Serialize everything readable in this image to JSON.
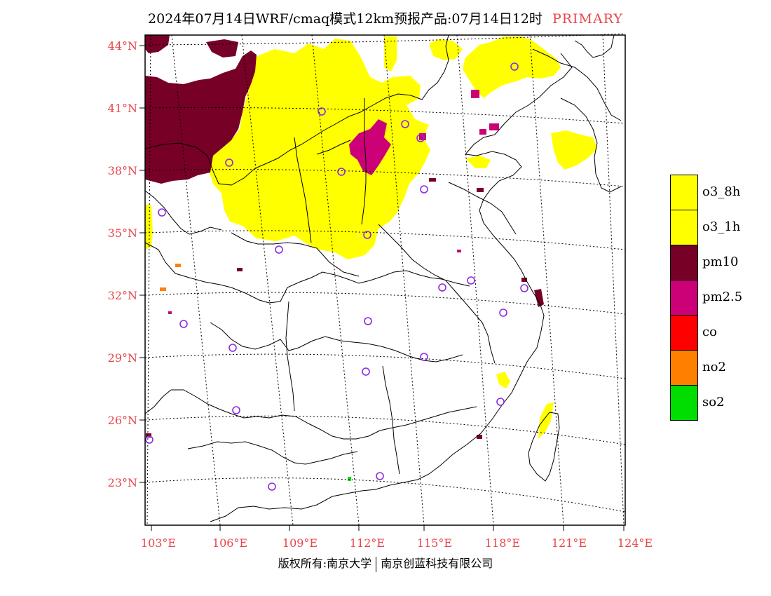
{
  "title": {
    "text": "2024年07月14日WRF/cmaq模式12km预报产品:07月14日12时",
    "tag": "PRIMARY"
  },
  "axes": {
    "lat_labels": [
      "44°N",
      "41°N",
      "38°N",
      "35°N",
      "32°N",
      "29°N",
      "26°N",
      "23°N"
    ],
    "lon_labels": [
      "103°E",
      "106°E",
      "109°E",
      "112°E",
      "115°E",
      "118°E",
      "121°E",
      "124°E"
    ],
    "label_color": "#e8454b",
    "grid_style": "dotted"
  },
  "legend": {
    "items": [
      {
        "label": "o3_8h",
        "color": "#ffff00"
      },
      {
        "label": "o3_1h",
        "color": "#ffff00"
      },
      {
        "label": "pm10",
        "color": "#770027"
      },
      {
        "label": "pm2.5",
        "color": "#cc0077"
      },
      {
        "label": "co",
        "color": "#ff0000"
      },
      {
        "label": "no2",
        "color": "#ff7f00"
      },
      {
        "label": "so2",
        "color": "#00dd00"
      }
    ]
  },
  "colors": {
    "o3": "#ffff00",
    "pm10": "#770027",
    "pm25": "#cc0077",
    "station_marker": "#8a2be2",
    "boundary": "#000000"
  },
  "footer": {
    "left": "版权所有:南京大学",
    "right": "南京创蓝科技有限公司"
  }
}
